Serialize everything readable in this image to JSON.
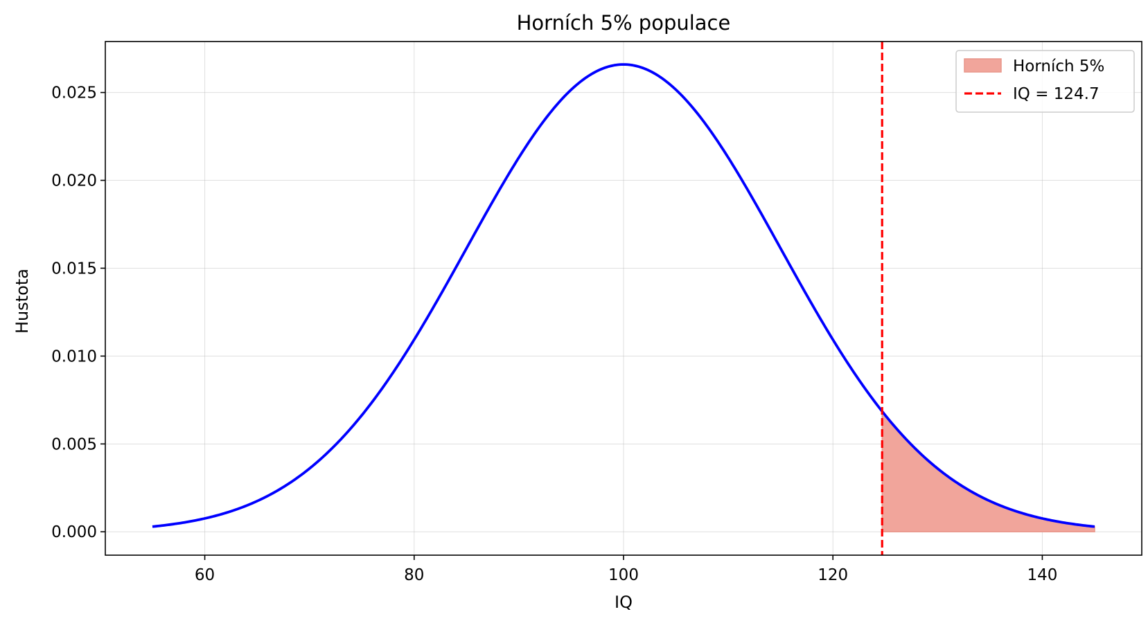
{
  "chart_data": {
    "type": "line",
    "title": "Horních 5% populace",
    "xlabel": "IQ",
    "ylabel": "Hustota",
    "xlim": [
      50.5,
      149.5
    ],
    "ylim": [
      -0.00133,
      0.0279
    ],
    "x_ticks": [
      60,
      80,
      100,
      120,
      140
    ],
    "y_ticks": [
      0.0,
      0.005,
      0.01,
      0.015,
      0.02,
      0.025
    ],
    "y_tick_labels": [
      "0.000",
      "0.005",
      "0.010",
      "0.015",
      "0.020",
      "0.025"
    ],
    "grid": true,
    "legend_position": "top-right",
    "series": [
      {
        "name": "",
        "kind": "line",
        "color": "#0000ff",
        "distribution": "normal",
        "mean": 100,
        "std": 15,
        "x_range": [
          55,
          145
        ]
      },
      {
        "name": "Horních 5%",
        "kind": "area",
        "color": "#f1a59b",
        "x_range": [
          124.7,
          145
        ]
      },
      {
        "name": "IQ = 124.7",
        "kind": "vline",
        "color": "#ff0000",
        "x": 124.7
      }
    ]
  }
}
